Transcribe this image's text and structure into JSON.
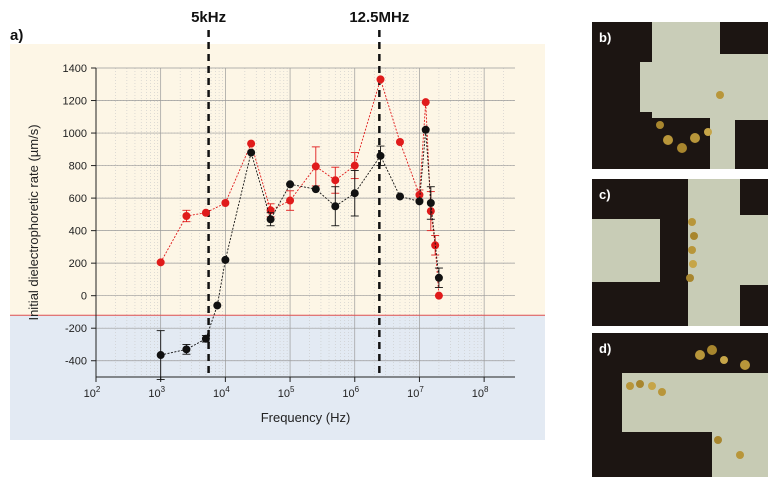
{
  "panel_label": "a)",
  "micrographs": [
    {
      "label": "b)"
    },
    {
      "label": "c)"
    },
    {
      "label": "d)"
    }
  ],
  "colors": {
    "red_series": "#e01b1b",
    "black_series": "#111111",
    "positive_region": "#fdf6e6",
    "negative_region": "#e3eaf3",
    "boundary_line": "#e05050"
  },
  "chart_data": {
    "type": "scatter",
    "x_scale": "log",
    "xlabel": "Frequency (Hz)",
    "ylabel": "Initial dielectrophoretic rate (µm/s)",
    "xlim": [
      100,
      300000000
    ],
    "ylim": [
      -500,
      1400
    ],
    "x_ticks": [
      {
        "value": 100,
        "base": "10",
        "exp": "2"
      },
      {
        "value": 1000,
        "base": "10",
        "exp": "3"
      },
      {
        "value": 10000,
        "base": "10",
        "exp": "4"
      },
      {
        "value": 100000,
        "base": "10",
        "exp": "5"
      },
      {
        "value": 1000000,
        "base": "10",
        "exp": "6"
      },
      {
        "value": 10000000,
        "base": "10",
        "exp": "7"
      },
      {
        "value": 100000000,
        "base": "10",
        "exp": "8"
      }
    ],
    "y_ticks": [
      "1400",
      "1200",
      "1000",
      "800",
      "600",
      "400",
      "200",
      "0",
      "-200",
      "-400"
    ],
    "grid": true,
    "region_boundary_y": -120,
    "annotations": [
      {
        "text": "5kHz",
        "x": 5500
      },
      {
        "text": "12.5MHz",
        "x": 2400000
      }
    ],
    "series": [
      {
        "color": "#e01b1b",
        "points": [
          {
            "x": 1000,
            "y": 205,
            "err": 0
          },
          {
            "x": 2500,
            "y": 490,
            "err": 35
          },
          {
            "x": 5000,
            "y": 510,
            "err": 0
          },
          {
            "x": 10000,
            "y": 570,
            "err": 0
          },
          {
            "x": 25000,
            "y": 935,
            "err": 0
          },
          {
            "x": 50000,
            "y": 525,
            "err": 40
          },
          {
            "x": 100000,
            "y": 585,
            "err": 60
          },
          {
            "x": 250000,
            "y": 795,
            "err": 120
          },
          {
            "x": 500000,
            "y": 710,
            "err": 80
          },
          {
            "x": 1000000,
            "y": 800,
            "err": 80
          },
          {
            "x": 2500000,
            "y": 1330,
            "err": 0
          },
          {
            "x": 5000000,
            "y": 945,
            "err": 0
          },
          {
            "x": 10000000,
            "y": 620,
            "err": 30
          },
          {
            "x": 12500000,
            "y": 1190,
            "err": 0
          },
          {
            "x": 15000000,
            "y": 520,
            "err": 120
          },
          {
            "x": 17500000,
            "y": 310,
            "err": 60
          },
          {
            "x": 20000000,
            "y": 0,
            "err": 0
          }
        ]
      },
      {
        "color": "#111111",
        "points": [
          {
            "x": 1000,
            "y": -365,
            "err": 150
          },
          {
            "x": 2500,
            "y": -330,
            "err": 30
          },
          {
            "x": 5000,
            "y": -265,
            "err": 20
          },
          {
            "x": 7500,
            "y": -60,
            "err": 0
          },
          {
            "x": 10000,
            "y": 220,
            "err": 0
          },
          {
            "x": 25000,
            "y": 880,
            "err": 0
          },
          {
            "x": 50000,
            "y": 470,
            "err": 40
          },
          {
            "x": 100000,
            "y": 685,
            "err": 0
          },
          {
            "x": 250000,
            "y": 655,
            "err": 0
          },
          {
            "x": 500000,
            "y": 550,
            "err": 120
          },
          {
            "x": 1000000,
            "y": 630,
            "err": 140
          },
          {
            "x": 2500000,
            "y": 860,
            "err": 60
          },
          {
            "x": 5000000,
            "y": 610,
            "err": 0
          },
          {
            "x": 10000000,
            "y": 580,
            "err": 0
          },
          {
            "x": 12500000,
            "y": 1020,
            "err": 0
          },
          {
            "x": 15000000,
            "y": 570,
            "err": 100
          },
          {
            "x": 20000000,
            "y": 110,
            "err": 60
          }
        ]
      }
    ]
  }
}
